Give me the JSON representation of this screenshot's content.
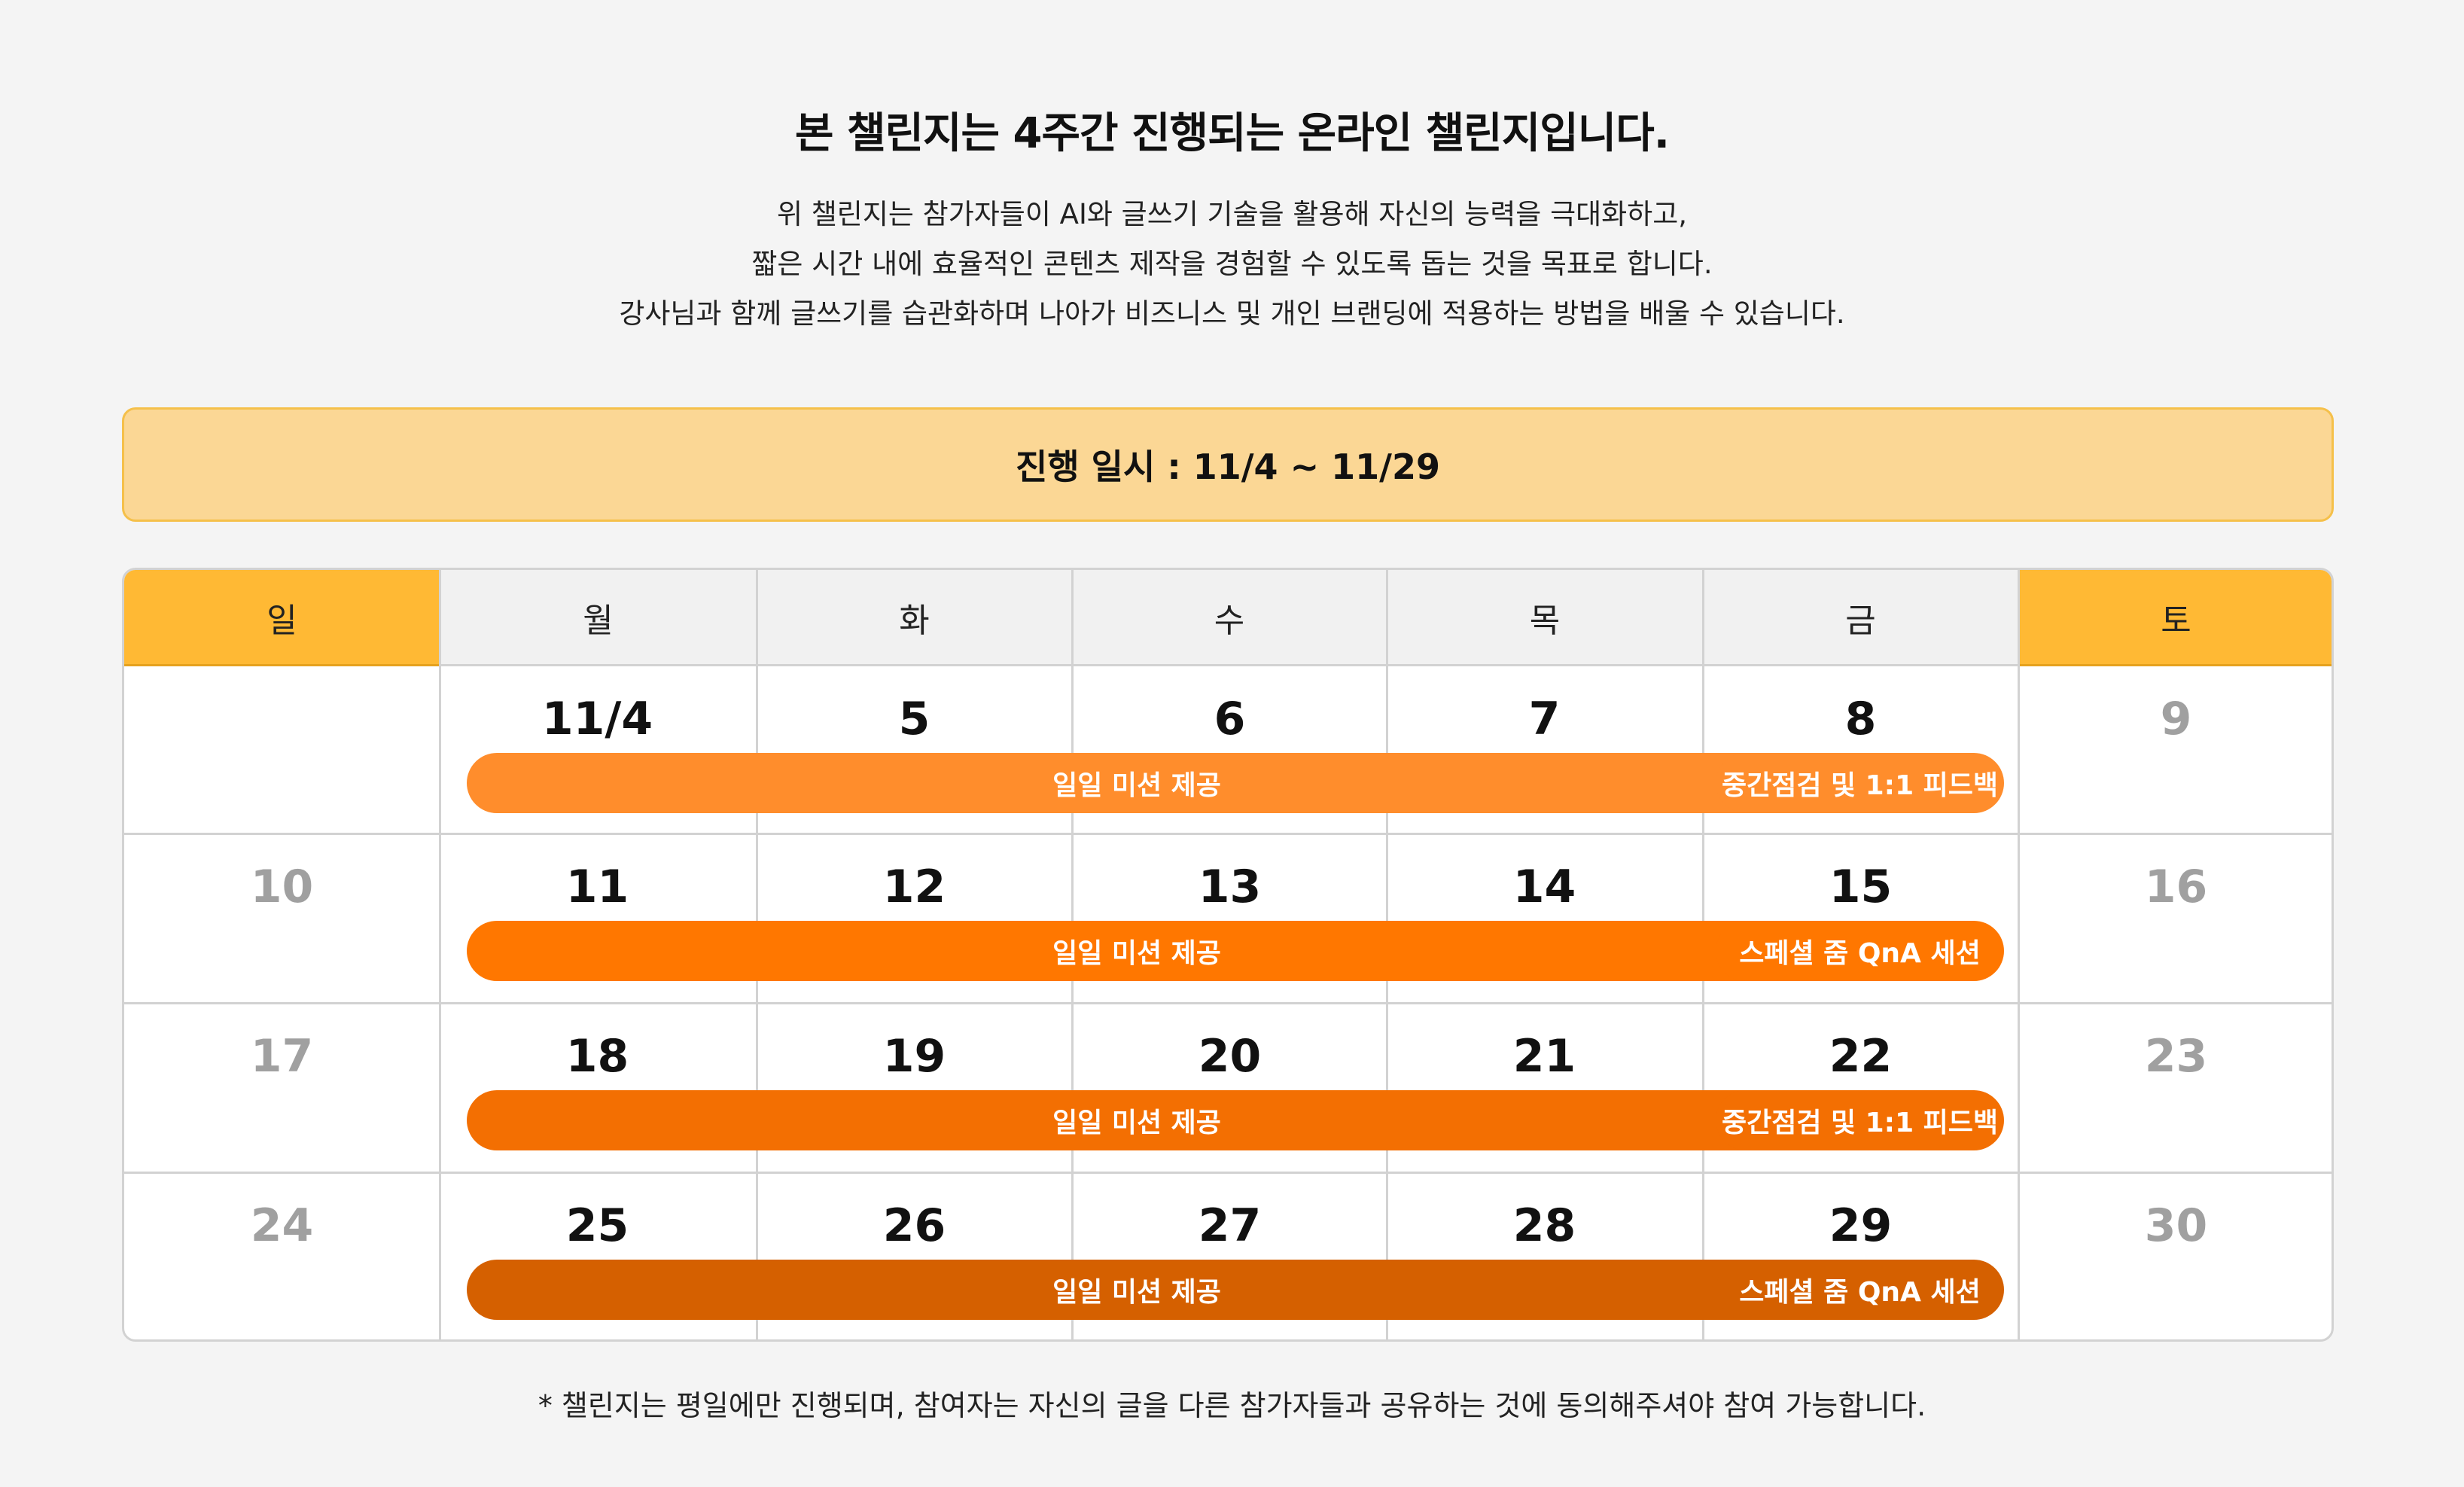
{
  "title": "본 챌린지는 4주간 진행되는 온라인 챌린지입니다.",
  "description": [
    "위 챌린지는 참가자들이 AI와 글쓰기 기술을 활용해 자신의 능력을 극대화하고,",
    "짧은 시간 내에 효율적인 콘텐츠 제작을 경험할 수 있도록 돕는 것을 목표로 합니다.",
    "강사님과 함께 글쓰기를 습관화하며 나아가 비즈니스 및 개인 브랜딩에 적용하는 방법을 배울 수 있습니다."
  ],
  "period": "진행 일시 : 11/4 ~ 11/29",
  "weekdays": [
    "일",
    "월",
    "화",
    "수",
    "목",
    "금",
    "토"
  ],
  "weeks": [
    {
      "days": [
        "",
        "11/4",
        "5",
        "6",
        "7",
        "8",
        "9"
      ],
      "mission": "일일 미션 제공",
      "friday_event": "중간점검 및 1:1 피드백",
      "mission_color": "#ff8d2c",
      "friday_color": "#ff8d2c"
    },
    {
      "days": [
        "10",
        "11",
        "12",
        "13",
        "14",
        "15",
        "16"
      ],
      "mission": "일일 미션 제공",
      "friday_event": "스페셜 줌 QnA 세션",
      "mission_color": "#ff7700",
      "friday_color": "#ff7700"
    },
    {
      "days": [
        "17",
        "18",
        "19",
        "20",
        "21",
        "22",
        "23"
      ],
      "mission": "일일 미션 제공",
      "friday_event": "중간점검 및 1:1 피드백",
      "mission_color": "#f36f02",
      "friday_color": "#f36f02"
    },
    {
      "days": [
        "24",
        "25",
        "26",
        "27",
        "28",
        "29",
        "30"
      ],
      "mission": "일일 미션 제공",
      "friday_event": "스페셜 줌 QnA 세션",
      "mission_color": "#d56000",
      "friday_color": "#d56000"
    }
  ],
  "footnote": "* 챌린지는 평일에만 진행되며, 참여자는 자신의 글을 다른 참가자들과 공유하는 것에 동의해주셔야 참여 가능합니다."
}
